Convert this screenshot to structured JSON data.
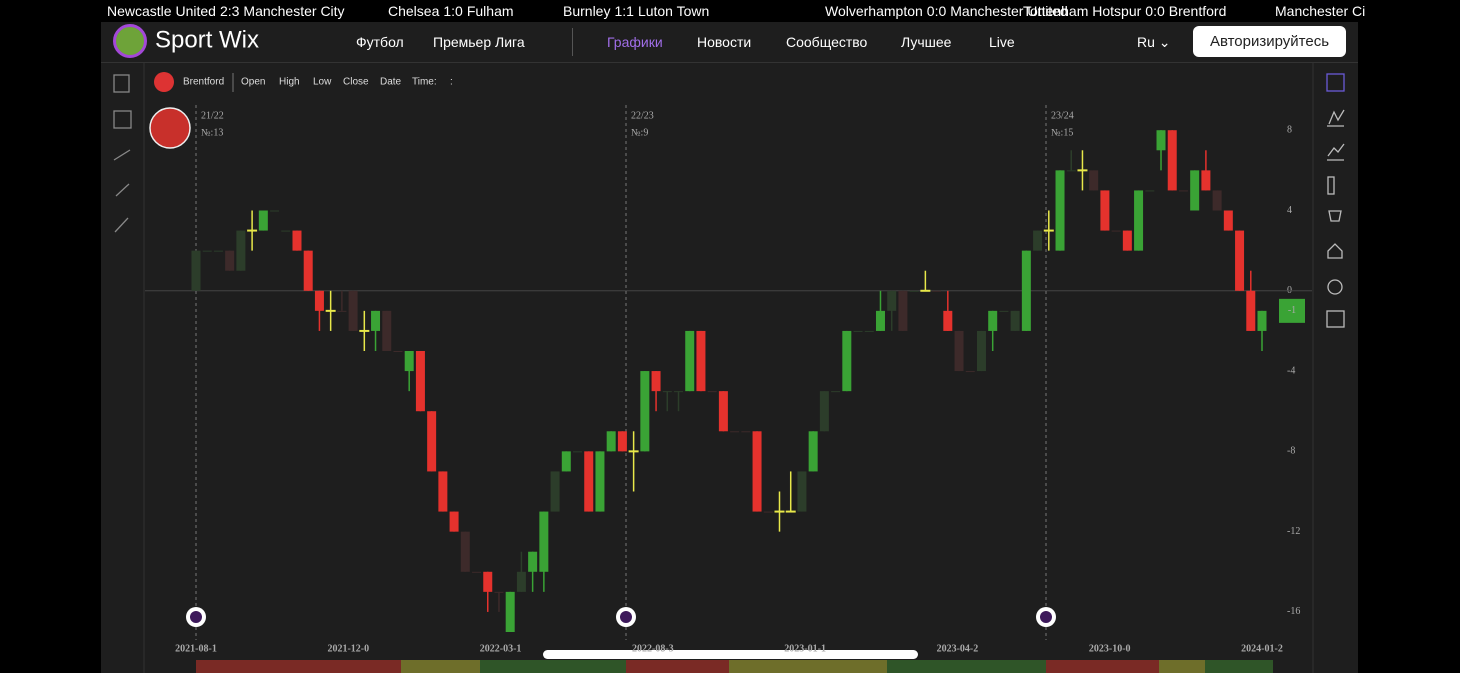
{
  "ticker": [
    {
      "home": "Newcastle United",
      "score": "2:3",
      "away": "Manchester City"
    },
    {
      "home": "Chelsea",
      "score": "1:0",
      "away": "Fulham"
    },
    {
      "home": "Burnley",
      "score": "1:1",
      "away": "Luton Town"
    },
    {
      "home": "Wolverhampton",
      "score": "0:0",
      "away": "Manchester United"
    },
    {
      "home": "Tottenham Hotspur",
      "score": "0:0",
      "away": "Brentford"
    },
    {
      "home": "Manchester Ci",
      "score": "",
      "away": ""
    }
  ],
  "header": {
    "logo": "Sport Wix",
    "nav": [
      "Футбол",
      "Премьер Лига",
      "Графики",
      "Новости",
      "Сообщество",
      "Лучшее",
      "Live"
    ],
    "language": "Ru",
    "login": "Авторизируйтесь"
  },
  "toolbar": {
    "team": "Brentford",
    "fields": [
      "Open",
      "High",
      "Low",
      "Close",
      "Date",
      "Time:",
      ":"
    ]
  },
  "chart_data": {
    "type": "candlestick",
    "seasons": [
      {
        "label": "21/22",
        "number": "№:13"
      },
      {
        "label": "22/23",
        "number": "№:9"
      },
      {
        "label": "23/24",
        "number": "№:15"
      }
    ],
    "x_labels": [
      "2021-08-1",
      "2021-12-0",
      "2022-03-1",
      "2022-08-3",
      "2023-01-1",
      "2023-04-2",
      "2023-10-0",
      "2024-01-2"
    ],
    "ylim": [
      -17,
      11
    ],
    "yticks": [
      8,
      4,
      0,
      -4,
      -8,
      -12,
      -16
    ],
    "last_value": -1,
    "colors": {
      "up": "#3aa335",
      "down": "#e5322d",
      "draw": "#e8e84a",
      "dim_up": "#2c3d2a",
      "dim_down": "#3d2a2a"
    },
    "candles": [
      {
        "open": 0,
        "close": 2,
        "high": 2,
        "low": 0,
        "kind": "dim_up"
      },
      {
        "open": 2,
        "close": 2,
        "high": 2,
        "low": 2,
        "kind": "dim_up"
      },
      {
        "open": 2,
        "close": 2,
        "high": 2,
        "low": 2,
        "kind": "dim_up"
      },
      {
        "open": 2,
        "close": 1,
        "high": 2,
        "low": 1,
        "kind": "dim_down"
      },
      {
        "open": 1,
        "close": 3,
        "high": 3,
        "low": 1,
        "kind": "dim_up"
      },
      {
        "open": 3,
        "close": 3,
        "high": 4,
        "low": 2,
        "kind": "draw"
      },
      {
        "open": 3,
        "close": 4,
        "high": 4,
        "low": 3,
        "kind": "up"
      },
      {
        "open": 4,
        "close": 4,
        "high": 4,
        "low": 4,
        "kind": "dim_up"
      },
      {
        "open": 3,
        "close": 3,
        "high": 3,
        "low": 3,
        "kind": "dim_up"
      },
      {
        "open": 3,
        "close": 2,
        "high": 3,
        "low": 2,
        "kind": "down"
      },
      {
        "open": 2,
        "close": 0,
        "high": 2,
        "low": 0,
        "kind": "down"
      },
      {
        "open": 0,
        "close": -1,
        "high": 0,
        "low": -2,
        "kind": "down"
      },
      {
        "open": -1,
        "close": -1,
        "high": 0,
        "low": -2,
        "kind": "draw"
      },
      {
        "open": -1,
        "close": -1,
        "high": 0,
        "low": -1,
        "kind": "dim_down"
      },
      {
        "open": 0,
        "close": -2,
        "high": 0,
        "low": -2,
        "kind": "dim_down"
      },
      {
        "open": -2,
        "close": -2,
        "high": -1,
        "low": -3,
        "kind": "draw"
      },
      {
        "open": -2,
        "close": -1,
        "high": -1,
        "low": -3,
        "kind": "up"
      },
      {
        "open": -1,
        "close": -3,
        "high": -1,
        "low": -3,
        "kind": "dim_down"
      },
      {
        "open": -3,
        "close": -3,
        "high": -3,
        "low": -3,
        "kind": "dim_down"
      },
      {
        "open": -4,
        "close": -3,
        "high": -3,
        "low": -5,
        "kind": "up"
      },
      {
        "open": -3,
        "close": -6,
        "high": -3,
        "low": -6,
        "kind": "down"
      },
      {
        "open": -6,
        "close": -9,
        "high": -6,
        "low": -9,
        "kind": "down"
      },
      {
        "open": -9,
        "close": -11,
        "high": -9,
        "low": -11,
        "kind": "down"
      },
      {
        "open": -11,
        "close": -12,
        "high": -11,
        "low": -12,
        "kind": "down"
      },
      {
        "open": -12,
        "close": -14,
        "high": -12,
        "low": -14,
        "kind": "dim_down"
      },
      {
        "open": -14,
        "close": -14,
        "high": -14,
        "low": -14,
        "kind": "dim_down"
      },
      {
        "open": -14,
        "close": -15,
        "high": -14,
        "low": -16,
        "kind": "down"
      },
      {
        "open": -15,
        "close": -15,
        "high": -15,
        "low": -16,
        "kind": "dim_down"
      },
      {
        "open": -17,
        "close": -15,
        "high": -15,
        "low": -17,
        "kind": "up"
      },
      {
        "open": -15,
        "close": -14,
        "high": -13,
        "low": -15,
        "kind": "dim_up"
      },
      {
        "open": -14,
        "close": -13,
        "high": -13,
        "low": -15,
        "kind": "up"
      },
      {
        "open": -14,
        "close": -11,
        "high": -11,
        "low": -15,
        "kind": "up"
      },
      {
        "open": -11,
        "close": -9,
        "high": -9,
        "low": -11,
        "kind": "dim_up"
      },
      {
        "open": -9,
        "close": -8,
        "high": -8,
        "low": -9,
        "kind": "up"
      },
      {
        "open": -8,
        "close": -8,
        "high": -8,
        "low": -8,
        "kind": "dim_up"
      },
      {
        "open": -8,
        "close": -11,
        "high": -8,
        "low": -11,
        "kind": "down"
      },
      {
        "open": -11,
        "close": -8,
        "high": -8,
        "low": -11,
        "kind": "up"
      },
      {
        "open": -8,
        "close": -7,
        "high": -7,
        "low": -8,
        "kind": "up"
      },
      {
        "open": -7,
        "close": -8,
        "high": -7,
        "low": -8,
        "kind": "down"
      },
      {
        "open": -8,
        "close": -8,
        "high": -7,
        "low": -10,
        "kind": "draw"
      },
      {
        "open": -8,
        "close": -4,
        "high": -4,
        "low": -8,
        "kind": "up"
      },
      {
        "open": -4,
        "close": -5,
        "high": -4,
        "low": -6,
        "kind": "down"
      },
      {
        "open": -5,
        "close": -5,
        "high": -5,
        "low": -6,
        "kind": "dim_up"
      },
      {
        "open": -5,
        "close": -5,
        "high": -5,
        "low": -6,
        "kind": "dim_up"
      },
      {
        "open": -5,
        "close": -2,
        "high": -2,
        "low": -5,
        "kind": "up"
      },
      {
        "open": -2,
        "close": -5,
        "high": -2,
        "low": -5,
        "kind": "down"
      },
      {
        "open": -5,
        "close": -5,
        "high": -5,
        "low": -5,
        "kind": "dim_down"
      },
      {
        "open": -5,
        "close": -7,
        "high": -5,
        "low": -7,
        "kind": "down"
      },
      {
        "open": -7,
        "close": -7,
        "high": -7,
        "low": -7,
        "kind": "dim_down"
      },
      {
        "open": -7,
        "close": -7,
        "high": -7,
        "low": -7,
        "kind": "dim_down"
      },
      {
        "open": -7,
        "close": -11,
        "high": -7,
        "low": -11,
        "kind": "down"
      },
      {
        "open": -11,
        "close": -11,
        "high": -11,
        "low": -11,
        "kind": "dim_down"
      },
      {
        "open": -11,
        "close": -11,
        "high": -10,
        "low": -12,
        "kind": "draw"
      },
      {
        "open": -11,
        "close": -11,
        "high": -9,
        "low": -11,
        "kind": "draw"
      },
      {
        "open": -11,
        "close": -9,
        "high": -9,
        "low": -11,
        "kind": "dim_up"
      },
      {
        "open": -9,
        "close": -7,
        "high": -7,
        "low": -9,
        "kind": "up"
      },
      {
        "open": -7,
        "close": -5,
        "high": -5,
        "low": -7,
        "kind": "dim_up"
      },
      {
        "open": -5,
        "close": -5,
        "high": -5,
        "low": -5,
        "kind": "dim_up"
      },
      {
        "open": -5,
        "close": -2,
        "high": -2,
        "low": -5,
        "kind": "up"
      },
      {
        "open": -2,
        "close": -2,
        "high": -2,
        "low": -2,
        "kind": "dim_up"
      },
      {
        "open": -2,
        "close": -2,
        "high": -2,
        "low": -2,
        "kind": "dim_up"
      },
      {
        "open": -2,
        "close": -1,
        "high": 0,
        "low": -2,
        "kind": "up"
      },
      {
        "open": -1,
        "close": 0,
        "high": 0,
        "low": -2,
        "kind": "dim_up"
      },
      {
        "open": 0,
        "close": -2,
        "high": 0,
        "low": -2,
        "kind": "dim_down"
      },
      {
        "open": 0,
        "close": 0,
        "high": 0,
        "low": 0,
        "kind": "dim_up"
      },
      {
        "open": 0,
        "close": 0,
        "high": 1,
        "low": 0,
        "kind": "draw"
      },
      {
        "open": 0,
        "close": 0,
        "high": 0,
        "low": 0,
        "kind": "dim_down"
      },
      {
        "open": -1,
        "close": -2,
        "high": 0,
        "low": -2,
        "kind": "down"
      },
      {
        "open": -2,
        "close": -4,
        "high": -2,
        "low": -4,
        "kind": "dim_down"
      },
      {
        "open": -4,
        "close": -4,
        "high": -4,
        "low": -4,
        "kind": "dim_down"
      },
      {
        "open": -4,
        "close": -2,
        "high": -2,
        "low": -4,
        "kind": "dim_up"
      },
      {
        "open": -2,
        "close": -1,
        "high": -1,
        "low": -3,
        "kind": "up"
      },
      {
        "open": -1,
        "close": -1,
        "high": -1,
        "low": -1,
        "kind": "dim_up"
      },
      {
        "open": -1,
        "close": -2,
        "high": -1,
        "low": -2,
        "kind": "dim_up"
      },
      {
        "open": -2,
        "close": 2,
        "high": 2,
        "low": -2,
        "kind": "up"
      },
      {
        "open": 2,
        "close": 3,
        "high": 3,
        "low": 2,
        "kind": "dim_up"
      },
      {
        "open": 3,
        "close": 3,
        "high": 4,
        "low": 2,
        "kind": "draw"
      },
      {
        "open": 2,
        "close": 6,
        "high": 6,
        "low": 2,
        "kind": "up"
      },
      {
        "open": 6,
        "close": 6,
        "high": 7,
        "low": 6,
        "kind": "dim_up"
      },
      {
        "open": 6,
        "close": 6,
        "high": 7,
        "low": 5,
        "kind": "draw"
      },
      {
        "open": 6,
        "close": 5,
        "high": 6,
        "low": 5,
        "kind": "dim_down"
      },
      {
        "open": 5,
        "close": 3,
        "high": 5,
        "low": 3,
        "kind": "down"
      },
      {
        "open": 3,
        "close": 3,
        "high": 3,
        "low": 3,
        "kind": "dim_down"
      },
      {
        "open": 3,
        "close": 2,
        "high": 3,
        "low": 2,
        "kind": "down"
      },
      {
        "open": 2,
        "close": 5,
        "high": 5,
        "low": 2,
        "kind": "up"
      },
      {
        "open": 5,
        "close": 5,
        "high": 5,
        "low": 5,
        "kind": "dim_up"
      },
      {
        "open": 7,
        "close": 8,
        "high": 8,
        "low": 6,
        "kind": "up"
      },
      {
        "open": 8,
        "close": 5,
        "high": 8,
        "low": 5,
        "kind": "down"
      },
      {
        "open": 5,
        "close": 5,
        "high": 5,
        "low": 5,
        "kind": "dim_down"
      },
      {
        "open": 4,
        "close": 6,
        "high": 6,
        "low": 4,
        "kind": "up"
      },
      {
        "open": 6,
        "close": 5,
        "high": 7,
        "low": 5,
        "kind": "down"
      },
      {
        "open": 5,
        "close": 4,
        "high": 5,
        "low": 4,
        "kind": "dim_down"
      },
      {
        "open": 4,
        "close": 3,
        "high": 4,
        "low": 3,
        "kind": "down"
      },
      {
        "open": 3,
        "close": 0,
        "high": 3,
        "low": 0,
        "kind": "down"
      },
      {
        "open": 0,
        "close": -2,
        "high": 1,
        "low": -2,
        "kind": "down"
      },
      {
        "open": -2,
        "close": -1,
        "high": -1,
        "low": -3,
        "kind": "up"
      }
    ]
  }
}
